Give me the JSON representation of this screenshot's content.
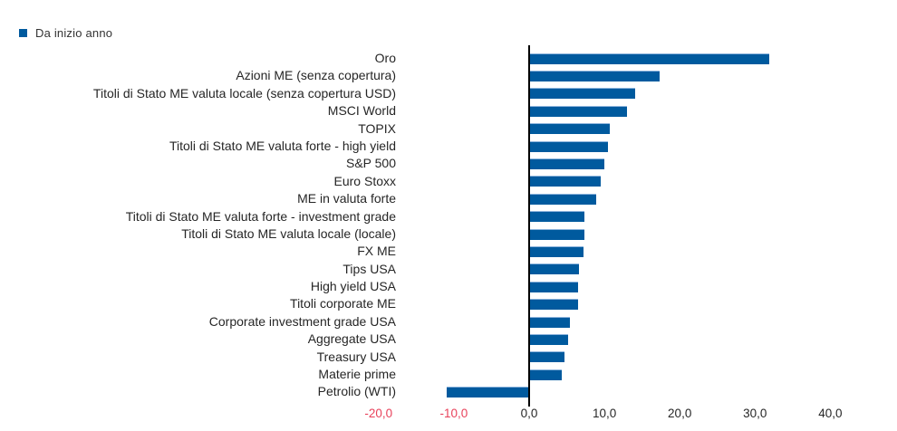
{
  "legend": {
    "label": "Da inizio anno",
    "color": "#005A9E",
    "position": "top-left"
  },
  "chart_data": {
    "type": "bar",
    "orientation": "horizontal",
    "title": "",
    "series_name": "Da inizio anno",
    "categories": [
      "Oro",
      "Azioni ME (senza copertura)",
      "Titoli di Stato ME valuta locale (senza copertura USD)",
      "MSCI World",
      "TOPIX",
      "Titoli di Stato ME valuta forte - high yield",
      "S&P 500",
      "Euro Stoxx",
      "ME in valuta forte",
      "Titoli di Stato ME valuta forte - investment grade",
      "Titoli di Stato ME valuta locale (locale)",
      "FX ME",
      "Tips USA",
      "High yield USA",
      "Titoli corporate ME",
      "Corporate investment grade USA",
      "Aggregate USA",
      "Treasury USA",
      "Materie prime",
      "Petrolio (WTI)"
    ],
    "values": [
      31.9,
      17.3,
      14.1,
      13.0,
      10.7,
      10.5,
      10.0,
      9.5,
      8.9,
      7.4,
      7.3,
      7.2,
      6.6,
      6.5,
      6.5,
      5.4,
      5.2,
      4.7,
      4.3,
      -11.0
    ],
    "xlabel": "",
    "ylabel": "",
    "xlim": [
      -20,
      48
    ],
    "x_ticks": [
      {
        "label": "-20,0",
        "value": -20,
        "negative": true
      },
      {
        "label": "-10,0",
        "value": -10,
        "negative": true
      },
      {
        "label": "0,0",
        "value": 0,
        "negative": false
      },
      {
        "label": "10,0",
        "value": 10,
        "negative": false
      },
      {
        "label": "20,0",
        "value": 20,
        "negative": false
      },
      {
        "label": "30,0",
        "value": 30,
        "negative": false
      },
      {
        "label": "40,0",
        "value": 40,
        "negative": false
      }
    ],
    "grid": false,
    "legend_position": "top-left",
    "value_format": "italian-decimal-comma",
    "colors": {
      "bar": "#005A9E",
      "bar_edge": "#8DB4DC",
      "axis_line": "#000000",
      "tick_negative": "#E8415A",
      "tick_default": "#262626",
      "category_label": "#262626"
    }
  }
}
